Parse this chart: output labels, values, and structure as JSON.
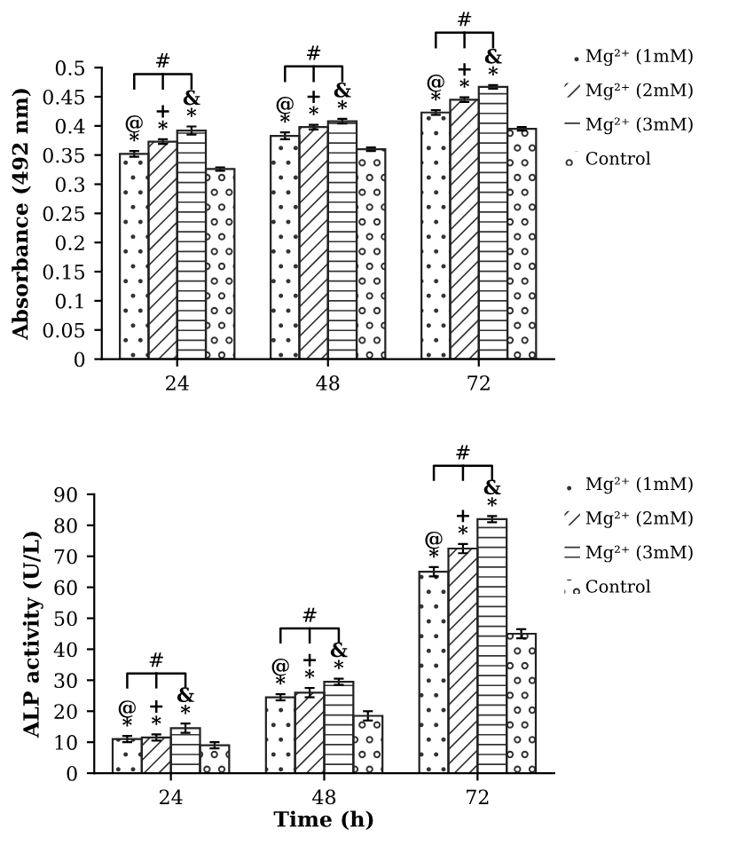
{
  "chart_data": [
    {
      "type": "bar",
      "ylabel": "Absorbance (492 nm)",
      "categories": [
        "24",
        "48",
        "72"
      ],
      "ylim": [
        0,
        0.5
      ],
      "yticks": [
        0,
        0.05,
        0.1,
        0.15,
        0.2,
        0.25,
        0.3,
        0.35,
        0.4,
        0.45,
        0.5
      ],
      "legend": "right",
      "grid": false,
      "series": [
        {
          "name": "Mg²⁺ (1mM)",
          "color": "#ffffff",
          "values": [
            0.352,
            0.383,
            0.423
          ],
          "errors": [
            0.005,
            0.006,
            0.004
          ],
          "value_labels": [
            "@\n*",
            "@\n*",
            "@\n*"
          ]
        },
        {
          "name": "Mg²⁺ (2mM)",
          "color": "#ffffff",
          "values": [
            0.373,
            0.398,
            0.445
          ],
          "errors": [
            0.004,
            0.004,
            0.004
          ],
          "value_labels": [
            "+\n*",
            "+\n*",
            "+\n*"
          ]
        },
        {
          "name": "Mg²⁺ (3mM)",
          "color": "#ffffff",
          "values": [
            0.392,
            0.408,
            0.467
          ],
          "errors": [
            0.007,
            0.004,
            0.003
          ],
          "value_labels": [
            "&\n*",
            "&\n*",
            "&\n*"
          ]
        },
        {
          "name": "Control",
          "color": "#ffffff",
          "values": [
            0.326,
            0.36,
            0.395
          ],
          "errors": [
            0.003,
            0.003,
            0.003
          ]
        }
      ],
      "annotations": [
        "#",
        "#",
        "#"
      ]
    },
    {
      "type": "bar",
      "ylabel": "ALP activity (U/L)",
      "xlabel": "Time (h)",
      "categories": [
        "24",
        "48",
        "72"
      ],
      "ylim": [
        0,
        90
      ],
      "yticks": [
        0,
        10,
        20,
        30,
        40,
        50,
        60,
        70,
        80,
        90
      ],
      "legend": "right",
      "grid": false,
      "series": [
        {
          "name": "Mg²⁺ (1mM)",
          "color": "#ffffff",
          "values": [
            11,
            24.5,
            65
          ],
          "errors": [
            1,
            1,
            1.5
          ],
          "value_labels": [
            "@\n*",
            "@\n*",
            "@\n*"
          ]
        },
        {
          "name": "Mg²⁺ (2mM)",
          "color": "#ffffff",
          "values": [
            11.5,
            26,
            72.5
          ],
          "errors": [
            1,
            1.5,
            1.5
          ],
          "value_labels": [
            "+\n*",
            "+\n*",
            "+\n*"
          ]
        },
        {
          "name": "Mg²⁺ (3mM)",
          "color": "#ffffff",
          "values": [
            14.5,
            29.5,
            82
          ],
          "errors": [
            1.5,
            1,
            1
          ],
          "value_labels": [
            "&\n*",
            "&\n*",
            "&\n*"
          ]
        },
        {
          "name": "Control",
          "color": "#ffffff",
          "values": [
            9,
            18.5,
            45
          ],
          "errors": [
            1,
            1.5,
            1.5
          ]
        }
      ],
      "annotations": [
        "#",
        "#",
        "#"
      ]
    }
  ]
}
